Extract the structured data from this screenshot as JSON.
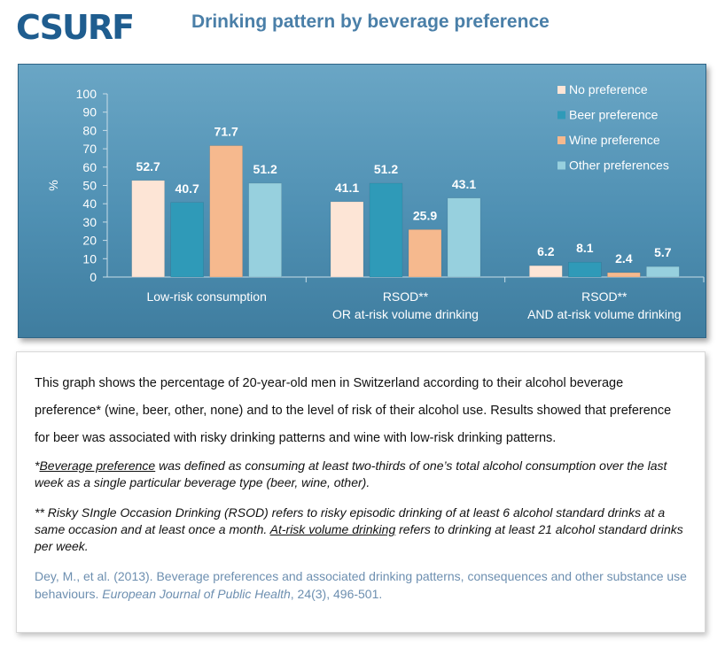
{
  "logo": {
    "text": "CSURF"
  },
  "header": {
    "title": "Drinking pattern by beverage preference"
  },
  "colors": {
    "no_preference": "#fde5d6",
    "beer_preference": "#2f9ab8",
    "wine_preference": "#f6b98e",
    "other_preferences": "#97d0de"
  },
  "chart_data": {
    "type": "bar",
    "ylabel": "%",
    "ylim": [
      0,
      100
    ],
    "yticks": [
      "0",
      "10",
      "20",
      "30",
      "40",
      "50",
      "60",
      "70",
      "80",
      "90",
      "100"
    ],
    "legend_position": "top-right",
    "grid": false,
    "categories": [
      [
        "Low-risk consumption"
      ],
      [
        "RSOD**",
        "OR at-risk volume drinking"
      ],
      [
        "RSOD**",
        "AND at-risk volume drinking"
      ]
    ],
    "series": [
      {
        "name": "No preference",
        "values": [
          52.7,
          41.1,
          6.2
        ]
      },
      {
        "name": "Beer preference",
        "values": [
          40.7,
          51.2,
          8.1
        ]
      },
      {
        "name": "Wine preference",
        "values": [
          71.7,
          25.9,
          2.4
        ]
      },
      {
        "name": "Other preferences",
        "values": [
          51.2,
          43.1,
          5.7
        ]
      }
    ]
  },
  "text_panel": {
    "description": "This graph shows the percentage of 20-year-old men in Switzerland according to their alcohol beverage preference* (wine, beer, other, none) and to the level of risk of their alcohol use. Results showed that preference for beer was associated with risky drinking patterns and wine with low-risk drinking patterns.",
    "note1_prefix": "*",
    "note1_term": "Beverage preference",
    "note1_rest": " was defined as consuming at least two-thirds of one’s total alcohol consumption over the last week as a single particular beverage type (beer, wine, other).",
    "note2_prefix": "** Risky SIngle Occasion Drinking (RSOD) refers to risky episodic drinking of at least 6 alcohol standard drinks at a same occasion and at least once a month.  ",
    "note2_term": "At-risk volume drinking",
    "note2_rest": " refers to drinking at least 21 alcohol standard drinks per week.",
    "citation_authors": "Dey, M., et al. (2013). Beverage preferences and associated drinking patterns, consequences and other substance use behaviours. ",
    "citation_journal": "European Journal of Public Health",
    "citation_rest": ", 24(3), 496-501."
  }
}
